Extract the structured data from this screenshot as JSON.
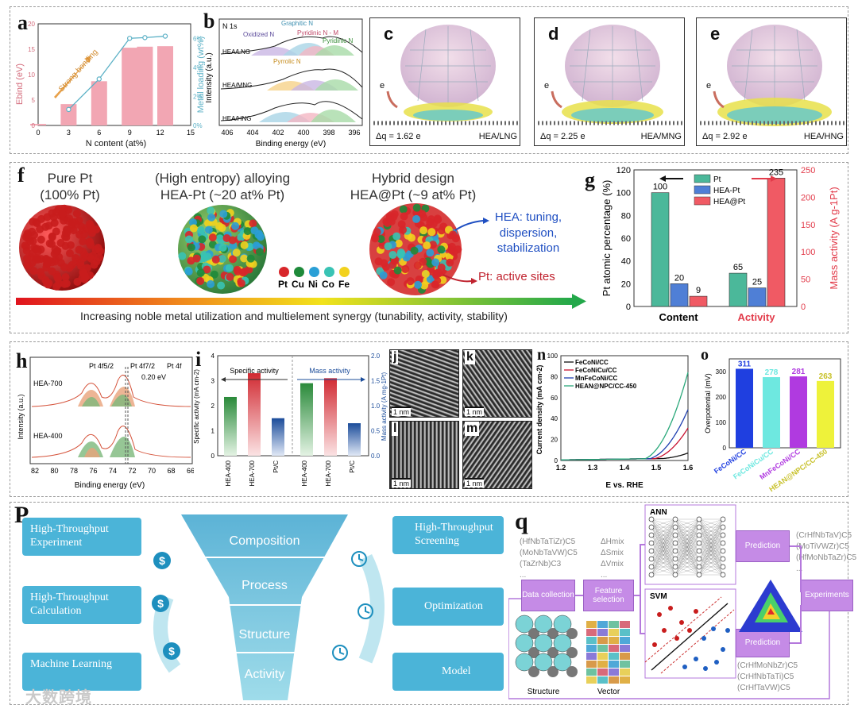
{
  "labels": {
    "a": "a",
    "b": "b",
    "c": "c",
    "d": "d",
    "e": "e",
    "f": "f",
    "g": "g",
    "h": "h",
    "i": "i",
    "j": "j",
    "k": "k",
    "l": "l",
    "m": "m",
    "n": "n",
    "o": "o",
    "p": "P",
    "q": "q"
  },
  "panel_a": {
    "ylabel_left": "Ebind (eV)",
    "ylabel_right": "Metal loading (wt%)",
    "xlabel": "N content (at%)",
    "annotation": "Strong bonding"
  },
  "panel_b": {
    "title": "N 1s",
    "ylabel": "Intensity (a.u.)",
    "xlabel": "Binding energy (eV)",
    "traces": [
      "HEA/LNG",
      "HEA/MNG",
      "HEA/HNG"
    ],
    "peaks": [
      "Oxidized N",
      "Graphitic N",
      "Pyridinic N - M",
      "Pyridinic N",
      "Pyrrolic N"
    ],
    "ticks": [
      "406",
      "404",
      "402",
      "400",
      "398",
      "396"
    ]
  },
  "panel_cde": [
    {
      "dq": "Δq = 1.62 e",
      "name": "HEA/LNG"
    },
    {
      "dq": "Δq = 2.25 e",
      "name": "HEA/MNG"
    },
    {
      "dq": "Δq = 2.92 e",
      "name": "HEA/HNG"
    }
  ],
  "panel_f": {
    "col1_title": "Pure Pt",
    "col1_sub": "(100% Pt)",
    "col2_title": "(High entropy) alloying",
    "col2_sub": "HEA-Pt (~20 at% Pt)",
    "col3_title": "Hybrid design",
    "col3_sub": "HEA@Pt (~9 at% Pt)",
    "hea_note": "HEA: tuning, dispersion, stabilization",
    "pt_note": "Pt: active sites",
    "legend": [
      "Pt",
      "Cu",
      "Ni",
      "Co",
      "Fe"
    ],
    "arrow_text": "Increasing noble metal utilization and multielement synergy (tunability, activity, stability)"
  },
  "panel_h": {
    "peak1": "Pt 4f5/2",
    "peak2": "Pt 4f7/2",
    "corner": "Pt 4f",
    "shift": "0.20 eV",
    "traces": [
      "HEA-700",
      "HEA-400"
    ],
    "ylabel": "Intensity (a.u.)",
    "xlabel": "Binding energy (eV)",
    "ticks": [
      "82",
      "80",
      "78",
      "76",
      "74",
      "72",
      "70",
      "68",
      "66"
    ]
  },
  "panel_i": {
    "left_title": "Specific activity",
    "right_title": "Mass activity",
    "ylabel_left": "Specific activity (mA cm-2)",
    "ylabel_right": "Mass activity (A mg-1Pt)"
  },
  "panel_jklm": {
    "scale": "1 nm"
  },
  "panel_p": {
    "left_boxes": [
      "High-Throughput Experiment",
      "High-Throughput Calculation",
      "Machine Learning"
    ],
    "funnel": [
      "Composition",
      "Process",
      "Structure",
      "Activity"
    ],
    "right_boxes": [
      "High-Throughput Screening",
      "Optimization",
      "Model"
    ]
  },
  "panel_q": {
    "inputs": [
      "(HfNbTaTiZr)C5",
      "(MoNbTaVW)C5",
      "(TaZrNb)C3",
      "..."
    ],
    "features": [
      "ΔHmix",
      "ΔSmix",
      "ΔVmix",
      "..."
    ],
    "data_collection": "Data collection",
    "feature_selection": "Feature selection",
    "ann": "ANN",
    "svm": "SVM",
    "prediction": "Prediction",
    "experiments": "Experiments",
    "out_top": [
      "(CrHfNbTaV)C5",
      "(MoTiVWZr)C5",
      "(HfMoNbTaZr)C5",
      "..."
    ],
    "out_bottom": [
      "(CrHfMoNbZr)C5",
      "(CrHfNbTaTi)C5",
      "(CrHfTaVW)C5"
    ],
    "structure": "Structure",
    "vector": "Vector"
  },
  "watermark": "大数跨境",
  "chart_data": [
    {
      "id": "a",
      "type": "bar",
      "x": [
        0,
        3,
        6,
        9,
        10.5,
        12.5
      ],
      "values": [
        0.3,
        4.2,
        8.7,
        15.3,
        15.5,
        15.6
      ],
      "line_x": [
        3,
        6,
        9,
        10.5,
        12.5
      ],
      "line_values": [
        1.1,
        3.2,
        6,
        6.05,
        6.15
      ],
      "ylim": [
        0,
        20
      ],
      "xticks": [
        "0",
        "3",
        "6",
        "9",
        "12",
        "15"
      ],
      "yticks": [
        "0",
        "5",
        "10",
        "15",
        "20"
      ],
      "y2ticks": [
        "0%",
        "2%",
        "4%",
        "6%"
      ],
      "xlabel": "N content (at%)",
      "ylabel": "Ebind (eV)",
      "y2label": "Metal loading (wt%)"
    },
    {
      "id": "g",
      "type": "bar",
      "categories": [
        "Content",
        "Activity"
      ],
      "series": [
        {
          "name": "Pt",
          "values": [
            100,
            65
          ]
        },
        {
          "name": "HEA-Pt",
          "values": [
            20,
            25
          ]
        },
        {
          "name": "HEA@Pt",
          "values": [
            9,
            235
          ]
        }
      ],
      "ylabel": "Pt atomic percentage (%)",
      "y2label": "Mass activity (A g-1Pt)",
      "ylim": [
        0,
        120
      ],
      "y2lim": [
        0,
        250
      ],
      "yticks": [
        "0",
        "20",
        "40",
        "60",
        "80",
        "100",
        "120"
      ],
      "y2ticks": [
        "0",
        "50",
        "100",
        "150",
        "200",
        "250"
      ]
    },
    {
      "id": "i",
      "type": "bar",
      "categories": [
        "HEA-400",
        "HEA-700",
        "Pt/C",
        "HEA-400",
        "HEA-700",
        "Pt/C"
      ],
      "values": [
        2.35,
        3.3,
        1.5,
        1.45,
        1.55,
        0.65
      ],
      "yticks": [
        "0",
        "1",
        "2",
        "3",
        "4"
      ],
      "y2ticks": [
        "0.0",
        "0.5",
        "1.0",
        "1.5",
        "2.0"
      ]
    },
    {
      "id": "n",
      "type": "line",
      "series": [
        {
          "name": "FeCoNi/CC"
        },
        {
          "name": "FeCoNiCu/CC"
        },
        {
          "name": "MnFeCoNi/CC"
        },
        {
          "name": "HEAN@NPC/CC-450"
        }
      ],
      "xlabel": "E vs. RHE",
      "ylabel": "Current density (mA cm-2)",
      "xlim": [
        1.2,
        1.6
      ],
      "ylim": [
        0,
        100
      ],
      "xticks": [
        "1.2",
        "1.3",
        "1.4",
        "1.5",
        "1.6"
      ],
      "yticks": [
        "0",
        "20",
        "40",
        "60",
        "80",
        "100"
      ]
    },
    {
      "id": "o",
      "type": "bar",
      "categories": [
        "FeCoNi/CC",
        "FeCoNiCu/CC",
        "MnFeCoNi/CC",
        "HEAN@NPC/CC-450"
      ],
      "values": [
        311,
        278,
        281,
        263
      ],
      "ylabel": "Overpotential (mV)",
      "ylim": [
        0,
        350
      ],
      "yticks": [
        "0",
        "100",
        "200",
        "300"
      ]
    }
  ]
}
